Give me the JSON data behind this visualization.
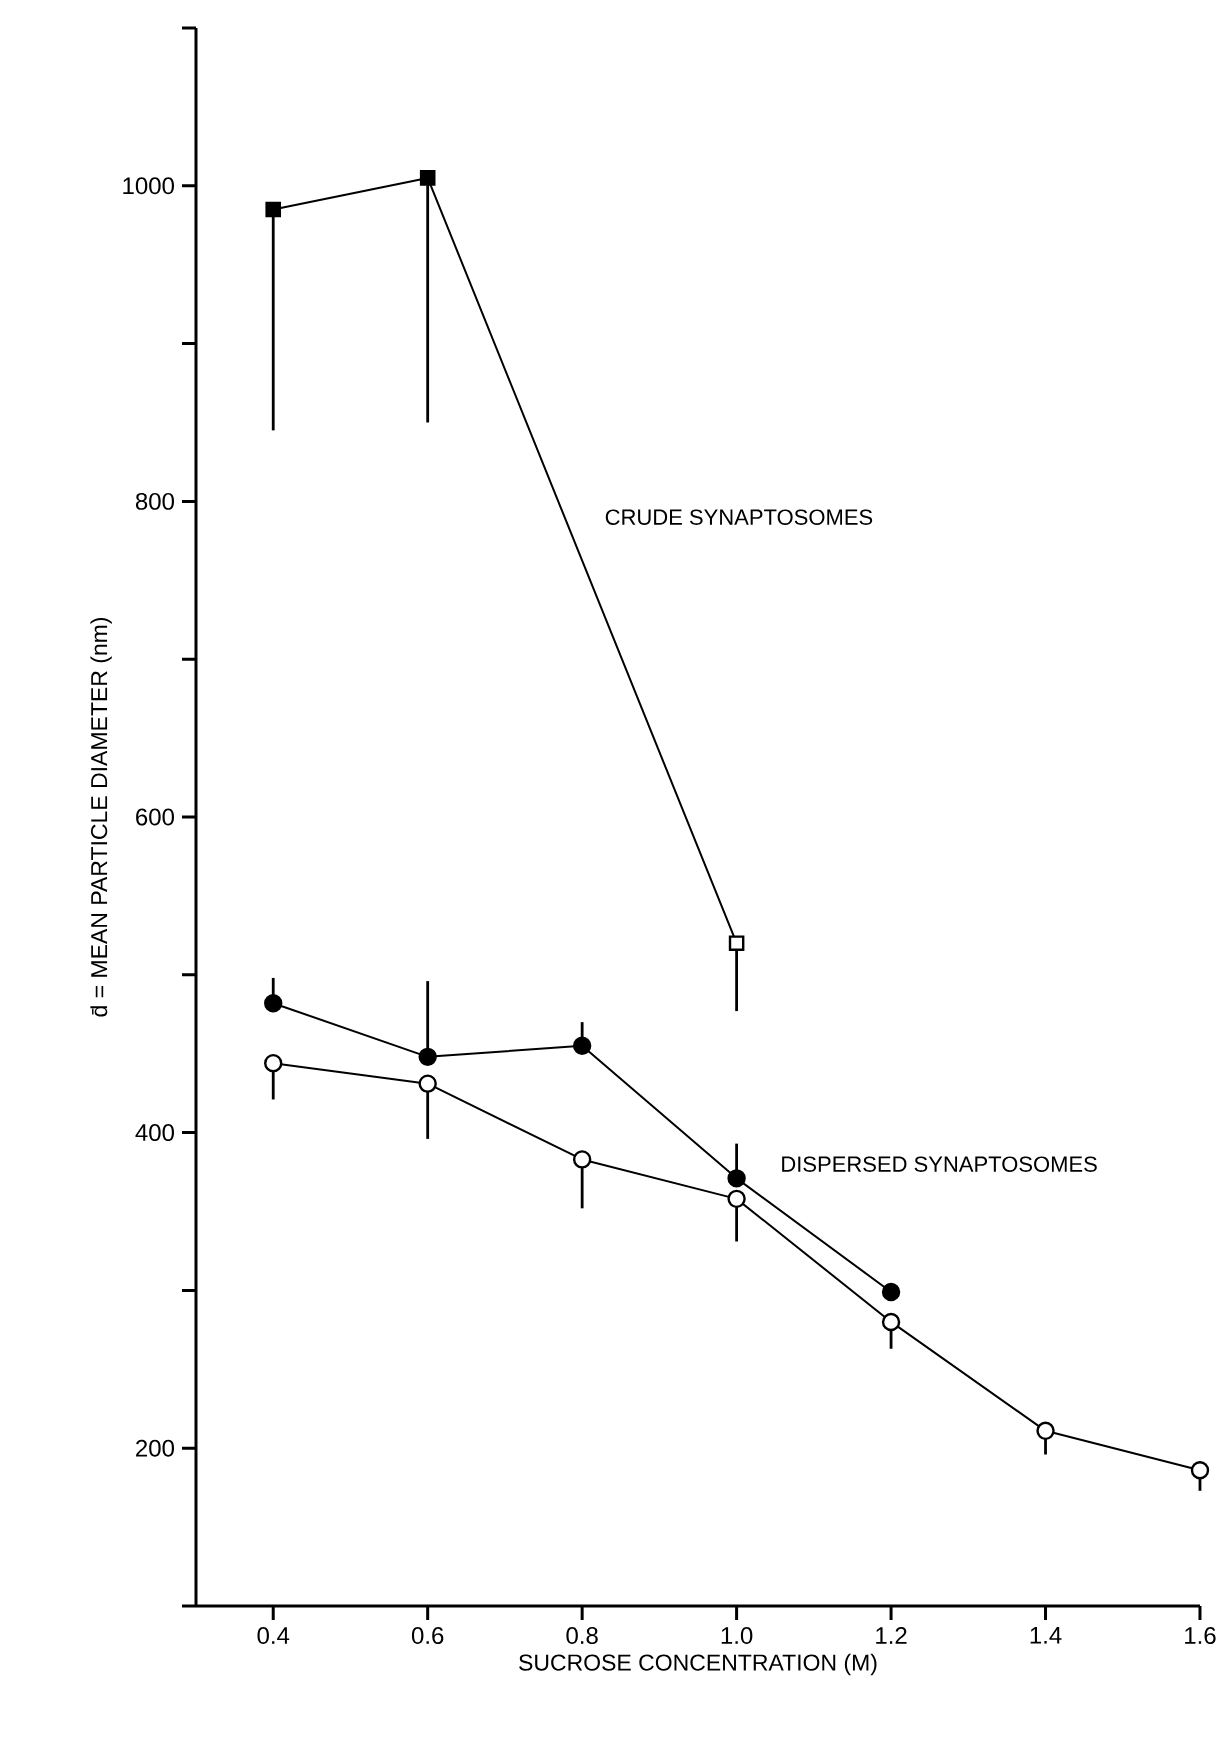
{
  "chart_data": {
    "type": "line",
    "xlabel": "SUCROSE CONCENTRATION (M)",
    "ylabel": "d̄ = MEAN PARTICLE DIAMETER (nm)",
    "xlim": [
      0.3,
      1.6
    ],
    "xticks": [
      0.4,
      0.6,
      0.8,
      {
        "value": 1,
        "label": "1.0"
      },
      1.2,
      1.4,
      1.6
    ],
    "ylim": [
      100,
      1100
    ],
    "yticks": [
      {
        "value": 100,
        "label": null
      },
      200,
      {
        "value": 300,
        "label": null
      },
      400,
      {
        "value": 500,
        "label": null
      },
      600,
      {
        "value": 700,
        "label": null
      },
      800,
      {
        "value": 900,
        "label": null
      },
      1000,
      {
        "value": 1100,
        "label": null
      }
    ],
    "series": [
      {
        "type": "line",
        "color": "#000000",
        "marker": "none",
        "x": [
          0.4,
          0.6,
          1.0
        ],
        "values": [
          985,
          1005,
          520
        ]
      },
      {
        "type": "scatter",
        "color": "#000000",
        "marker": "square",
        "x": [
          0.4,
          0.6
        ],
        "values": [
          985,
          1005
        ],
        "errors": [
          [
            845,
            985
          ],
          [
            850,
            1005
          ]
        ]
      },
      {
        "type": "scatter",
        "color": "#ffffff",
        "marker": "square",
        "x": [
          1.0
        ],
        "values": [
          520
        ],
        "errors": [
          [
            477,
            520
          ]
        ]
      },
      {
        "type": "line",
        "color": "#000000",
        "marker": "none",
        "x": [
          0.4,
          0.6,
          0.8,
          1.0,
          1.2
        ],
        "values": [
          482,
          448,
          455,
          371,
          299
        ]
      },
      {
        "type": "scatter",
        "color": "#000000",
        "marker": "circle",
        "x": [
          0.4,
          0.6,
          0.8,
          1.0,
          1.2
        ],
        "values": [
          482,
          448,
          455,
          371,
          299
        ],
        "errors": [
          [
            482,
            498
          ],
          [
            448,
            496
          ],
          [
            455,
            470
          ],
          [
            371,
            393
          ],
          null
        ]
      },
      {
        "type": "line",
        "color": "#000000",
        "marker": "none",
        "x": [
          0.4,
          0.6,
          0.8,
          1.0,
          1.2,
          1.4,
          1.6
        ],
        "values": [
          444,
          431,
          383,
          358,
          280,
          211,
          186
        ]
      },
      {
        "type": "scatter",
        "color": "#ffffff",
        "marker": "circle",
        "x": [
          0.4,
          0.6,
          0.8,
          1.0,
          1.2,
          1.4,
          1.6
        ],
        "values": [
          444,
          431,
          383,
          358,
          280,
          211,
          186
        ],
        "errors": [
          [
            421,
            444
          ],
          [
            396,
            431
          ],
          [
            352,
            383
          ],
          [
            331,
            358
          ],
          [
            263,
            280
          ],
          [
            196,
            211
          ],
          [
            173,
            186
          ]
        ]
      }
    ],
    "annotations": [
      "CRUDE SYNAPTOSOMES",
      "DISPERSED SYNAPTOSOMES"
    ]
  }
}
